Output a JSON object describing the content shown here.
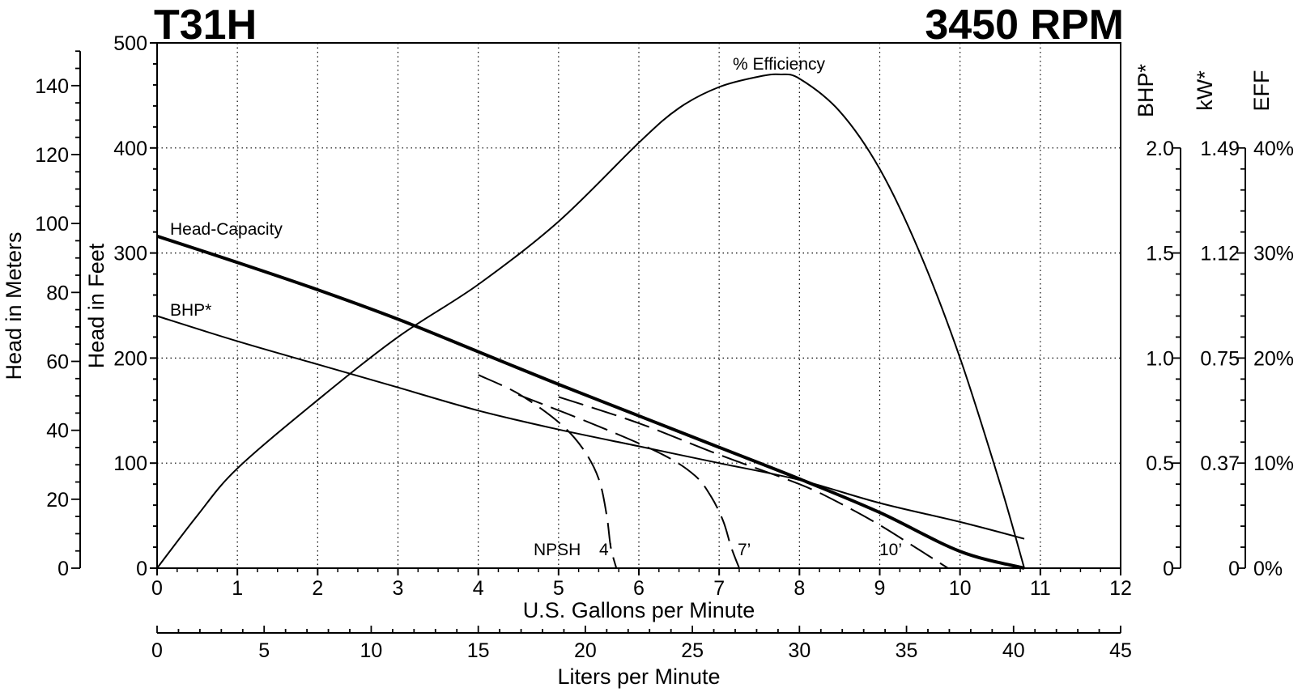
{
  "chart_data": {
    "type": "line",
    "title_left": "T31H",
    "title_right": "3450 RPM",
    "xlabel": "U.S. Gallons per Minute",
    "x2label": "Liters per Minute",
    "ylabel_feet": "Head in Feet",
    "ylabel_meters": "Head in Meters",
    "right_axis_labels": {
      "bhp": "BHP*",
      "kw": "kW*",
      "eff": "EFF"
    },
    "x_range_gpm": [
      0,
      12
    ],
    "x_ticks_gpm": [
      "0",
      "1",
      "2",
      "3",
      "4",
      "5",
      "6",
      "7",
      "8",
      "9",
      "10",
      "11",
      "12"
    ],
    "x2_range_lpm": [
      0,
      45
    ],
    "x2_ticks_lpm": [
      "0",
      "5",
      "10",
      "15",
      "20",
      "25",
      "30",
      "35",
      "40",
      "45"
    ],
    "y_range_feet": [
      0,
      500
    ],
    "y_ticks_feet": [
      "0",
      "100",
      "200",
      "300",
      "400",
      "500"
    ],
    "y_ticks_meters": [
      {
        "v": 0,
        "label": "0"
      },
      {
        "v": 20,
        "label": "20"
      },
      {
        "v": 40,
        "label": "40"
      },
      {
        "v": 60,
        "label": "60"
      },
      {
        "v": 80,
        "label": "80"
      },
      {
        "v": 100,
        "label": "100"
      },
      {
        "v": 120,
        "label": "120"
      },
      {
        "v": 140,
        "label": "140"
      }
    ],
    "bhp_ticks": [
      {
        "feet": 0,
        "label": "0"
      },
      {
        "feet": 100,
        "label": "0.5"
      },
      {
        "feet": 200,
        "label": "1.0"
      },
      {
        "feet": 300,
        "label": "1.5"
      },
      {
        "feet": 400,
        "label": "2.0"
      }
    ],
    "kw_ticks": [
      {
        "feet": 0,
        "label": "0"
      },
      {
        "feet": 100,
        "label": "0.37"
      },
      {
        "feet": 200,
        "label": "0.75"
      },
      {
        "feet": 300,
        "label": "1.12"
      },
      {
        "feet": 400,
        "label": "1.49"
      }
    ],
    "eff_ticks": [
      {
        "feet": 0,
        "label": "0%"
      },
      {
        "feet": 100,
        "label": "10%"
      },
      {
        "feet": 200,
        "label": "20%"
      },
      {
        "feet": 300,
        "label": "30%"
      },
      {
        "feet": 400,
        "label": "40%"
      }
    ],
    "grid": "dotted",
    "series": [
      {
        "name": "Head-Capacity",
        "unit": "ft",
        "style": "thick",
        "x": [
          0,
          1,
          2,
          3,
          4,
          5,
          6,
          7,
          8,
          9,
          10,
          10.8
        ],
        "y": [
          316,
          291,
          265,
          237,
          206,
          175,
          145,
          115,
          85,
          53,
          16,
          0
        ]
      },
      {
        "name": "BHP*",
        "unit": "hp",
        "style": "thin",
        "x": [
          0,
          1,
          2,
          3,
          4,
          5,
          6,
          7,
          8,
          9,
          10,
          10.8
        ],
        "y": [
          1.2,
          1.08,
          0.97,
          0.86,
          0.75,
          0.66,
          0.58,
          0.5,
          0.42,
          0.31,
          0.22,
          0.14
        ]
      },
      {
        "name": "% Efficiency",
        "unit": "%",
        "style": "thin",
        "x": [
          0,
          0.5,
          1,
          2,
          3,
          4,
          5,
          6,
          6.5,
          7,
          7.5,
          7.75,
          8,
          8.5,
          9,
          9.5,
          10,
          10.5,
          10.8
        ],
        "y": [
          0,
          5,
          9.5,
          16,
          22,
          27,
          33,
          40.5,
          43.8,
          45.8,
          46.8,
          47,
          46.6,
          43.5,
          38,
          30,
          20,
          8,
          0
        ]
      },
      {
        "name": "NPSH 4'",
        "unit": "ft",
        "style": "dashed",
        "x": [
          4.0,
          4.5,
          5.0,
          5.3,
          5.5,
          5.6,
          5.65,
          5.72
        ],
        "y": [
          184,
          166,
          139,
          114,
          85,
          50,
          20,
          0
        ]
      },
      {
        "name": "7'",
        "unit": "ft",
        "style": "dashed",
        "x": [
          4.5,
          5.5,
          6.3,
          6.7,
          6.9,
          7.05,
          7.15,
          7.25
        ],
        "y": [
          165,
          135,
          108,
          88,
          68,
          45,
          20,
          0
        ]
      },
      {
        "name": "10'",
        "unit": "ft",
        "style": "dashed",
        "x": [
          5.0,
          6.0,
          7.0,
          8.0,
          8.5,
          9.0,
          9.5,
          9.85
        ],
        "y": [
          163,
          138,
          108,
          80,
          62,
          41,
          17,
          0
        ]
      }
    ],
    "annotations": {
      "head_capacity": "Head-Capacity",
      "bhp": "BHP*",
      "efficiency": "% Efficiency",
      "npsh": "NPSH",
      "npsh_4": "4’",
      "npsh_7": "7’",
      "npsh_10": "10’"
    }
  }
}
